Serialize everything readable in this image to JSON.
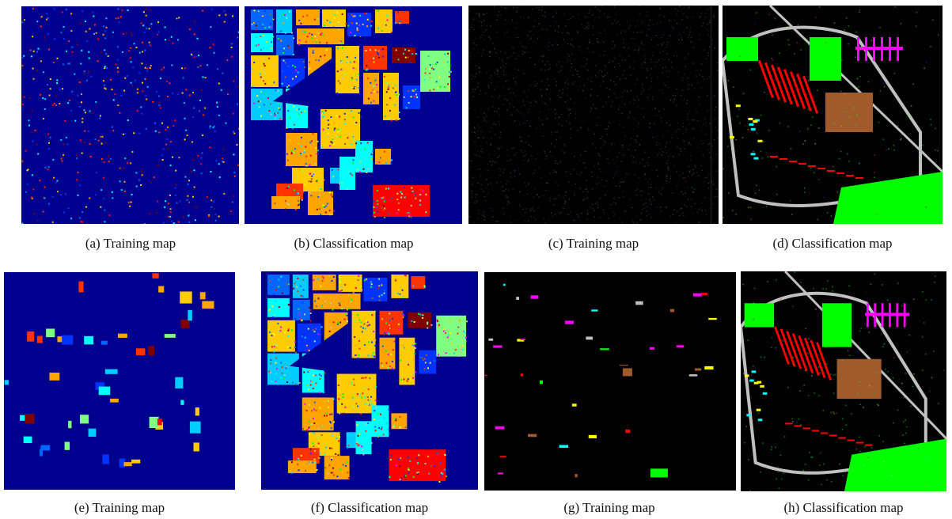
{
  "figure": {
    "panels": [
      {
        "id": "a",
        "label": "(a)",
        "caption": "Training map",
        "scene": "indian",
        "mode": "train-scatter"
      },
      {
        "id": "b",
        "label": "(b)",
        "caption": "Classification map",
        "scene": "indian",
        "mode": "classify"
      },
      {
        "id": "c",
        "label": "(c)",
        "caption": "Training map",
        "scene": "pavia",
        "mode": "train-scatter"
      },
      {
        "id": "d",
        "label": "(d)",
        "caption": "Classification map",
        "scene": "pavia",
        "mode": "classify"
      },
      {
        "id": "e",
        "label": "(e)",
        "caption": "Training map",
        "scene": "indian",
        "mode": "train-blocks"
      },
      {
        "id": "f",
        "label": "(f)",
        "caption": "Classification map",
        "scene": "indian",
        "mode": "classify"
      },
      {
        "id": "g",
        "label": "(g)",
        "caption": "Training map",
        "scene": "pavia",
        "mode": "train-blocks"
      },
      {
        "id": "h",
        "label": "(h)",
        "caption": "Classification map",
        "scene": "pavia",
        "mode": "classify"
      }
    ],
    "colors": {
      "indian_background": "#00008f",
      "pavia_background": "#000000",
      "class_palette": [
        "#0033ff",
        "#0066ff",
        "#00ccff",
        "#00ffff",
        "#ffa500",
        "#ffcc00",
        "#ff3300",
        "#ff0000",
        "#800000",
        "#80ff80",
        "#00ff00",
        "#ff00ff",
        "#a05a2c",
        "#c0c0c0",
        "#ffff00"
      ]
    }
  }
}
